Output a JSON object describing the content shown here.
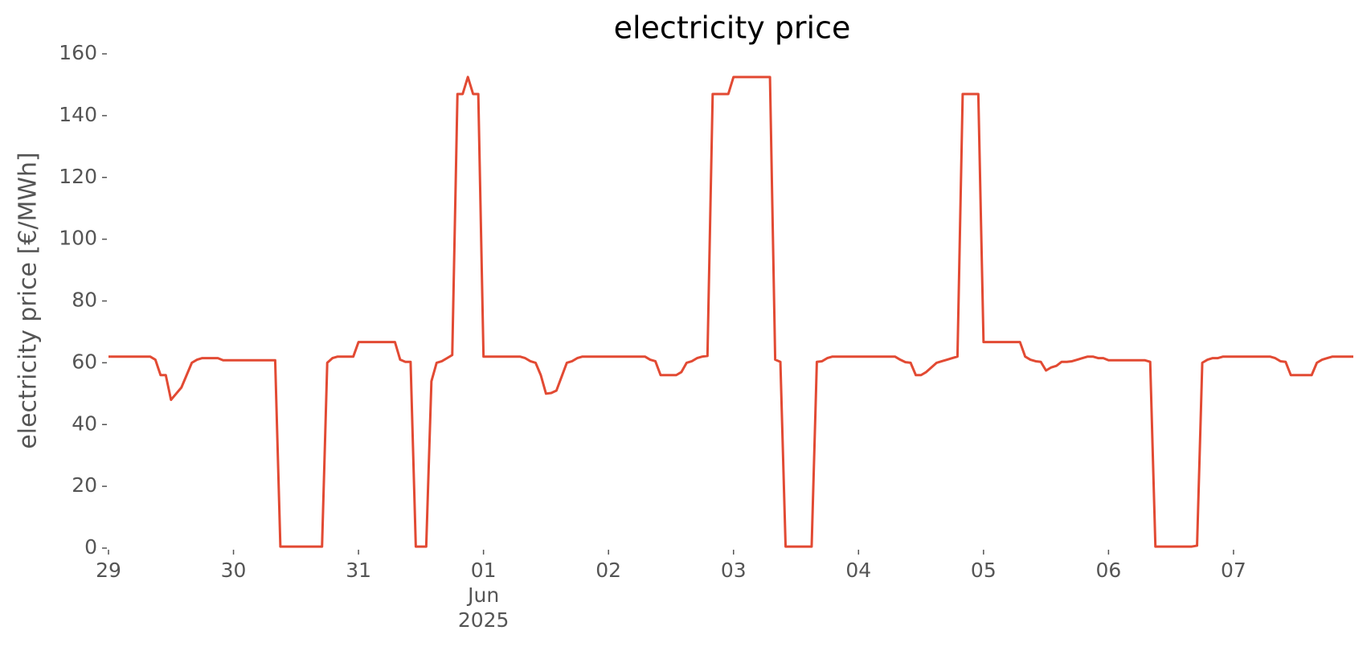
{
  "chart_data": {
    "type": "line",
    "title": "electricity price",
    "ylabel": "electricity price [€/MWh]",
    "color": "#e24a33",
    "x": [
      "2025-05-29T00:00",
      "2025-05-29T01:00",
      "2025-05-29T02:00",
      "2025-05-29T03:00",
      "2025-05-29T04:00",
      "2025-05-29T05:00",
      "2025-05-29T06:00",
      "2025-05-29T07:00",
      "2025-05-29T08:00",
      "2025-05-29T09:00",
      "2025-05-29T10:00",
      "2025-05-29T11:00",
      "2025-05-29T12:00",
      "2025-05-29T13:00",
      "2025-05-29T14:00",
      "2025-05-29T15:00",
      "2025-05-29T16:00",
      "2025-05-29T17:00",
      "2025-05-29T18:00",
      "2025-05-29T19:00",
      "2025-05-29T20:00",
      "2025-05-29T21:00",
      "2025-05-29T22:00",
      "2025-05-29T23:00",
      "2025-05-30T00:00",
      "2025-05-30T01:00",
      "2025-05-30T02:00",
      "2025-05-30T03:00",
      "2025-05-30T04:00",
      "2025-05-30T05:00",
      "2025-05-30T06:00",
      "2025-05-30T07:00",
      "2025-05-30T08:00",
      "2025-05-30T09:00",
      "2025-05-30T10:00",
      "2025-05-30T11:00",
      "2025-05-30T12:00",
      "2025-05-30T13:00",
      "2025-05-30T14:00",
      "2025-05-30T15:00",
      "2025-05-30T16:00",
      "2025-05-30T17:00",
      "2025-05-30T18:00",
      "2025-05-30T19:00",
      "2025-05-30T20:00",
      "2025-05-30T21:00",
      "2025-05-30T22:00",
      "2025-05-30T23:00",
      "2025-05-31T00:00",
      "2025-05-31T01:00",
      "2025-05-31T02:00",
      "2025-05-31T03:00",
      "2025-05-31T04:00",
      "2025-05-31T05:00",
      "2025-05-31T06:00",
      "2025-05-31T07:00",
      "2025-05-31T08:00",
      "2025-05-31T09:00",
      "2025-05-31T10:00",
      "2025-05-31T11:00",
      "2025-05-31T12:00",
      "2025-05-31T13:00",
      "2025-05-31T14:00",
      "2025-05-31T15:00",
      "2025-05-31T16:00",
      "2025-05-31T17:00",
      "2025-05-31T18:00",
      "2025-05-31T19:00",
      "2025-05-31T20:00",
      "2025-05-31T21:00",
      "2025-05-31T22:00",
      "2025-05-31T23:00",
      "2025-06-01T00:00",
      "2025-06-01T01:00",
      "2025-06-01T02:00",
      "2025-06-01T03:00",
      "2025-06-01T04:00",
      "2025-06-01T05:00",
      "2025-06-01T06:00",
      "2025-06-01T07:00",
      "2025-06-01T08:00",
      "2025-06-01T09:00",
      "2025-06-01T10:00",
      "2025-06-01T11:00",
      "2025-06-01T12:00",
      "2025-06-01T13:00",
      "2025-06-01T14:00",
      "2025-06-01T15:00",
      "2025-06-01T16:00",
      "2025-06-01T17:00",
      "2025-06-01T18:00",
      "2025-06-01T19:00",
      "2025-06-01T20:00",
      "2025-06-01T21:00",
      "2025-06-01T22:00",
      "2025-06-01T23:00",
      "2025-06-02T00:00",
      "2025-06-02T01:00",
      "2025-06-02T02:00",
      "2025-06-02T03:00",
      "2025-06-02T04:00",
      "2025-06-02T05:00",
      "2025-06-02T06:00",
      "2025-06-02T07:00",
      "2025-06-02T08:00",
      "2025-06-02T09:00",
      "2025-06-02T10:00",
      "2025-06-02T11:00",
      "2025-06-02T12:00",
      "2025-06-02T13:00",
      "2025-06-02T14:00",
      "2025-06-02T15:00",
      "2025-06-02T16:00",
      "2025-06-02T17:00",
      "2025-06-02T18:00",
      "2025-06-02T19:00",
      "2025-06-02T20:00",
      "2025-06-02T21:00",
      "2025-06-02T22:00",
      "2025-06-02T23:00",
      "2025-06-03T00:00",
      "2025-06-03T01:00",
      "2025-06-03T02:00",
      "2025-06-03T03:00",
      "2025-06-03T04:00",
      "2025-06-03T05:00",
      "2025-06-03T06:00",
      "2025-06-03T07:00",
      "2025-06-03T08:00",
      "2025-06-03T09:00",
      "2025-06-03T10:00",
      "2025-06-03T11:00",
      "2025-06-03T12:00",
      "2025-06-03T13:00",
      "2025-06-03T14:00",
      "2025-06-03T15:00",
      "2025-06-03T16:00",
      "2025-06-03T17:00",
      "2025-06-03T18:00",
      "2025-06-03T19:00",
      "2025-06-03T20:00",
      "2025-06-03T21:00",
      "2025-06-03T22:00",
      "2025-06-03T23:00",
      "2025-06-04T00:00",
      "2025-06-04T01:00",
      "2025-06-04T02:00",
      "2025-06-04T03:00",
      "2025-06-04T04:00",
      "2025-06-04T05:00",
      "2025-06-04T06:00",
      "2025-06-04T07:00",
      "2025-06-04T08:00",
      "2025-06-04T09:00",
      "2025-06-04T10:00",
      "2025-06-04T11:00",
      "2025-06-04T12:00",
      "2025-06-04T13:00",
      "2025-06-04T14:00",
      "2025-06-04T15:00",
      "2025-06-04T16:00",
      "2025-06-04T17:00",
      "2025-06-04T18:00",
      "2025-06-04T19:00",
      "2025-06-04T20:00",
      "2025-06-04T21:00",
      "2025-06-04T22:00",
      "2025-06-04T23:00",
      "2025-06-05T00:00",
      "2025-06-05T01:00",
      "2025-06-05T02:00",
      "2025-06-05T03:00",
      "2025-06-05T04:00",
      "2025-06-05T05:00",
      "2025-06-05T06:00",
      "2025-06-05T07:00",
      "2025-06-05T08:00",
      "2025-06-05T09:00",
      "2025-06-05T10:00",
      "2025-06-05T11:00",
      "2025-06-05T12:00",
      "2025-06-05T13:00",
      "2025-06-05T14:00",
      "2025-06-05T15:00",
      "2025-06-05T16:00",
      "2025-06-05T17:00",
      "2025-06-05T18:00",
      "2025-06-05T19:00",
      "2025-06-05T20:00",
      "2025-06-05T21:00",
      "2025-06-05T22:00",
      "2025-06-05T23:00",
      "2025-06-06T00:00",
      "2025-06-06T01:00",
      "2025-06-06T02:00",
      "2025-06-06T03:00",
      "2025-06-06T04:00",
      "2025-06-06T05:00",
      "2025-06-06T06:00",
      "2025-06-06T07:00",
      "2025-06-06T08:00",
      "2025-06-06T09:00",
      "2025-06-06T10:00",
      "2025-06-06T11:00",
      "2025-06-06T12:00",
      "2025-06-06T13:00",
      "2025-06-06T14:00",
      "2025-06-06T15:00",
      "2025-06-06T16:00",
      "2025-06-06T17:00",
      "2025-06-06T18:00",
      "2025-06-06T19:00",
      "2025-06-06T20:00",
      "2025-06-06T21:00",
      "2025-06-06T22:00",
      "2025-06-06T23:00",
      "2025-06-07T00:00",
      "2025-06-07T01:00",
      "2025-06-07T02:00",
      "2025-06-07T03:00",
      "2025-06-07T04:00",
      "2025-06-07T05:00",
      "2025-06-07T06:00",
      "2025-06-07T07:00",
      "2025-06-07T08:00",
      "2025-06-07T09:00",
      "2025-06-07T10:00",
      "2025-06-07T11:00",
      "2025-06-07T12:00",
      "2025-06-07T13:00",
      "2025-06-07T14:00",
      "2025-06-07T15:00",
      "2025-06-07T16:00",
      "2025-06-07T17:00",
      "2025-06-07T18:00",
      "2025-06-07T19:00",
      "2025-06-07T20:00",
      "2025-06-07T21:00",
      "2025-06-07T22:00",
      "2025-06-07T23:00"
    ],
    "values": [
      62,
      62,
      62,
      62,
      62,
      62,
      62,
      62,
      62,
      61,
      56,
      56,
      48,
      50,
      52,
      56,
      60,
      61,
      61.5,
      61.5,
      61.5,
      61.5,
      60.8,
      60.8,
      60.8,
      60.8,
      60.8,
      60.8,
      60.8,
      60.8,
      60.8,
      60.8,
      60.8,
      0.5,
      0.5,
      0.5,
      0.5,
      0.5,
      0.5,
      0.5,
      0.5,
      0.5,
      60,
      61.5,
      62,
      62,
      62,
      62,
      66.7,
      66.7,
      66.7,
      66.7,
      66.7,
      66.7,
      66.7,
      66.7,
      61,
      60.3,
      60.3,
      0.5,
      0.5,
      0.5,
      54,
      60,
      60.5,
      61.5,
      62.5,
      147,
      147,
      152.5,
      147,
      147,
      62,
      62,
      62,
      62,
      62,
      62,
      62,
      62,
      61.5,
      60.5,
      60,
      56,
      50,
      50.2,
      51,
      55.5,
      60,
      60.5,
      61.5,
      62,
      62,
      62,
      62,
      62,
      62,
      62,
      62,
      62,
      62,
      62,
      62,
      62,
      61,
      60.5,
      56,
      56,
      56,
      56,
      57,
      60,
      60.5,
      61.5,
      62,
      62.2,
      147,
      147,
      147,
      147,
      152.5,
      152.5,
      152.5,
      152.5,
      152.5,
      152.5,
      152.5,
      152.5,
      61,
      60.3,
      0.5,
      0.5,
      0.5,
      0.5,
      0.5,
      0.5,
      60.3,
      60.5,
      61.5,
      62,
      62,
      62,
      62,
      62,
      62,
      62,
      62,
      62,
      62,
      62,
      62,
      62,
      61,
      60.2,
      60,
      56,
      56,
      57,
      58.5,
      60,
      60.5,
      61,
      61.5,
      62,
      147,
      147,
      147,
      147,
      66.7,
      66.7,
      66.7,
      66.7,
      66.7,
      66.7,
      66.7,
      66.7,
      62,
      61,
      60.5,
      60.3,
      57.5,
      58.5,
      59,
      60.3,
      60.3,
      60.5,
      61,
      61.5,
      62,
      62,
      61.5,
      61.5,
      60.8,
      60.8,
      60.8,
      60.8,
      60.8,
      60.8,
      60.8,
      60.8,
      60.3,
      0.5,
      0.5,
      0.5,
      0.5,
      0.5,
      0.5,
      0.5,
      0.5,
      0.8,
      60,
      61,
      61.5,
      61.5,
      62,
      62,
      62,
      62,
      62,
      62,
      62,
      62,
      62,
      62,
      61.5,
      60.5,
      60.3,
      56,
      56,
      56,
      56,
      56,
      60,
      61,
      61.5,
      62,
      62,
      62,
      62,
      62
    ],
    "xlim": [
      "2025-05-29T00:00",
      "2025-06-07T23:00"
    ],
    "xticks": [
      {
        "value": "2025-05-29T00:00",
        "label": "29"
      },
      {
        "value": "2025-05-30T00:00",
        "label": "30"
      },
      {
        "value": "2025-05-31T00:00",
        "label": "31"
      },
      {
        "value": "2025-06-01T00:00",
        "label": "01\nJun\n2025"
      },
      {
        "value": "2025-06-02T00:00",
        "label": "02"
      },
      {
        "value": "2025-06-03T00:00",
        "label": "03"
      },
      {
        "value": "2025-06-04T00:00",
        "label": "04"
      },
      {
        "value": "2025-06-05T00:00",
        "label": "05"
      },
      {
        "value": "2025-06-06T00:00",
        "label": "06"
      },
      {
        "value": "2025-06-07T00:00",
        "label": "07"
      }
    ],
    "ylim": [
      0,
      160
    ],
    "yticks": [
      0,
      20,
      40,
      60,
      80,
      100,
      120,
      140,
      160
    ],
    "grid": false
  }
}
